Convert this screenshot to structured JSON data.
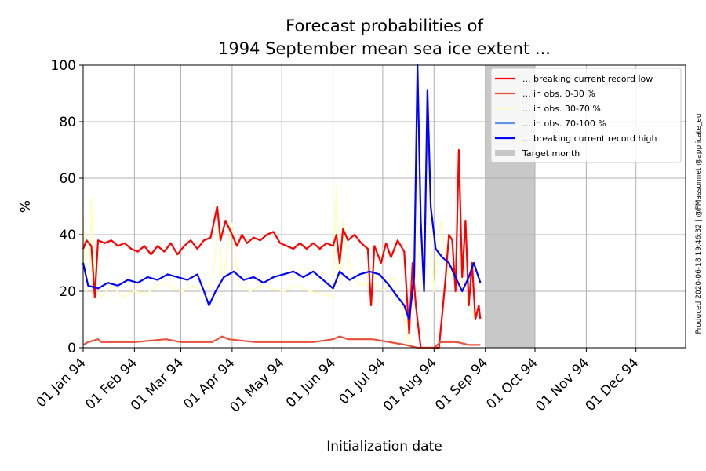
{
  "chart_data": {
    "type": "line",
    "title": "Forecast probabilities of",
    "subtitle": "1994 September mean sea ice extent ...",
    "xlabel": "Initialization date",
    "ylabel": "%",
    "ylim": [
      0,
      100
    ],
    "yticks": [
      "0",
      "20",
      "40",
      "60",
      "80",
      "100"
    ],
    "xlim": [
      "1994-01-01",
      "1994-12-31"
    ],
    "xticks": [
      {
        "date": "1994-01-01",
        "label": "01 Jan 94"
      },
      {
        "date": "1994-02-01",
        "label": "01 Feb 94"
      },
      {
        "date": "1994-03-01",
        "label": "01 Mar 94"
      },
      {
        "date": "1994-04-01",
        "label": "01 Apr 94"
      },
      {
        "date": "1994-05-01",
        "label": "01 May 94"
      },
      {
        "date": "1994-06-01",
        "label": "01 Jun 94"
      },
      {
        "date": "1994-07-01",
        "label": "01 Jul 94"
      },
      {
        "date": "1994-08-01",
        "label": "01 Aug 94"
      },
      {
        "date": "1994-09-01",
        "label": "01 Sep 94"
      },
      {
        "date": "1994-10-01",
        "label": "01 Oct 94"
      },
      {
        "date": "1994-11-01",
        "label": "01 Nov 94"
      },
      {
        "date": "1994-12-01",
        "label": "01 Dec 94"
      }
    ],
    "grid": true,
    "legend_position": "top-right",
    "target_month": {
      "name": "Target month",
      "start": "1994-09-01",
      "end": "1994-10-01",
      "color": "#c8c8c8"
    },
    "series": [
      {
        "name": "... breaking current record low",
        "color": "#ff0000",
        "points": [
          [
            "1994-01-01",
            35
          ],
          [
            "1994-01-03",
            38
          ],
          [
            "1994-01-06",
            36
          ],
          [
            "1994-01-08",
            18
          ],
          [
            "1994-01-10",
            38
          ],
          [
            "1994-01-14",
            37
          ],
          [
            "1994-01-18",
            38
          ],
          [
            "1994-01-22",
            36
          ],
          [
            "1994-01-26",
            37
          ],
          [
            "1994-01-30",
            35
          ],
          [
            "1994-02-03",
            34
          ],
          [
            "1994-02-07",
            36
          ],
          [
            "1994-02-11",
            33
          ],
          [
            "1994-02-15",
            36
          ],
          [
            "1994-02-19",
            34
          ],
          [
            "1994-02-23",
            37
          ],
          [
            "1994-02-27",
            33
          ],
          [
            "1994-03-03",
            36
          ],
          [
            "1994-03-07",
            38
          ],
          [
            "1994-03-11",
            35
          ],
          [
            "1994-03-15",
            38
          ],
          [
            "1994-03-19",
            39
          ],
          [
            "1994-03-23",
            50
          ],
          [
            "1994-03-25",
            38
          ],
          [
            "1994-03-28",
            45
          ],
          [
            "1994-04-01",
            40
          ],
          [
            "1994-04-04",
            36
          ],
          [
            "1994-04-07",
            40
          ],
          [
            "1994-04-10",
            37
          ],
          [
            "1994-04-14",
            39
          ],
          [
            "1994-04-18",
            38
          ],
          [
            "1994-04-22",
            40
          ],
          [
            "1994-04-26",
            41
          ],
          [
            "1994-04-30",
            37
          ],
          [
            "1994-05-04",
            36
          ],
          [
            "1994-05-08",
            35
          ],
          [
            "1994-05-12",
            37
          ],
          [
            "1994-05-16",
            35
          ],
          [
            "1994-05-20",
            37
          ],
          [
            "1994-05-24",
            35
          ],
          [
            "1994-05-28",
            37
          ],
          [
            "1994-06-01",
            36
          ],
          [
            "1994-06-03",
            40
          ],
          [
            "1994-06-05",
            30
          ],
          [
            "1994-06-07",
            42
          ],
          [
            "1994-06-10",
            38
          ],
          [
            "1994-06-14",
            40
          ],
          [
            "1994-06-18",
            37
          ],
          [
            "1994-06-22",
            35
          ],
          [
            "1994-06-24",
            15
          ],
          [
            "1994-06-26",
            36
          ],
          [
            "1994-06-30",
            30
          ],
          [
            "1994-07-03",
            37
          ],
          [
            "1994-07-06",
            32
          ],
          [
            "1994-07-10",
            38
          ],
          [
            "1994-07-14",
            34
          ],
          [
            "1994-07-17",
            5
          ],
          [
            "1994-07-19",
            30
          ],
          [
            "1994-07-21",
            15
          ],
          [
            "1994-07-24",
            0
          ],
          [
            "1994-07-27",
            0
          ],
          [
            "1994-07-30",
            0
          ],
          [
            "1994-08-02",
            0
          ],
          [
            "1994-08-04",
            0
          ],
          [
            "1994-08-06",
            12
          ],
          [
            "1994-08-08",
            25
          ],
          [
            "1994-08-10",
            40
          ],
          [
            "1994-08-12",
            38
          ],
          [
            "1994-08-14",
            20
          ],
          [
            "1994-08-16",
            70
          ],
          [
            "1994-08-18",
            25
          ],
          [
            "1994-08-20",
            45
          ],
          [
            "1994-08-22",
            15
          ],
          [
            "1994-08-24",
            30
          ],
          [
            "1994-08-26",
            10
          ],
          [
            "1994-08-28",
            15
          ],
          [
            "1994-08-29",
            10
          ]
        ]
      },
      {
        "name": "... in obs. 0-30 %",
        "color": "#e8503a",
        "points": [
          [
            "1994-01-01",
            1
          ],
          [
            "1994-01-04",
            2
          ],
          [
            "1994-01-10",
            3
          ],
          [
            "1994-01-12",
            2
          ],
          [
            "1994-02-01",
            2
          ],
          [
            "1994-02-20",
            3
          ],
          [
            "1994-03-01",
            2
          ],
          [
            "1994-03-20",
            2
          ],
          [
            "1994-03-26",
            4
          ],
          [
            "1994-03-30",
            3
          ],
          [
            "1994-04-15",
            2
          ],
          [
            "1994-05-01",
            2
          ],
          [
            "1994-05-20",
            2
          ],
          [
            "1994-06-01",
            3
          ],
          [
            "1994-06-05",
            4
          ],
          [
            "1994-06-10",
            3
          ],
          [
            "1994-06-25",
            3
          ],
          [
            "1994-07-05",
            2
          ],
          [
            "1994-07-15",
            1
          ],
          [
            "1994-07-22",
            0
          ],
          [
            "1994-08-01",
            0
          ],
          [
            "1994-08-05",
            2
          ],
          [
            "1994-08-15",
            2
          ],
          [
            "1994-08-22",
            1
          ],
          [
            "1994-08-29",
            1
          ]
        ]
      },
      {
        "name": "... in obs. 30-70 %",
        "color": "#ffffc0",
        "points": [
          [
            "1994-01-01",
            45
          ],
          [
            "1994-01-03",
            20
          ],
          [
            "1994-01-05",
            25
          ],
          [
            "1994-01-06",
            53
          ],
          [
            "1994-01-08",
            20
          ],
          [
            "1994-01-12",
            18
          ],
          [
            "1994-01-18",
            22
          ],
          [
            "1994-01-25",
            18
          ],
          [
            "1994-02-01",
            20
          ],
          [
            "1994-02-08",
            19
          ],
          [
            "1994-02-15",
            22
          ],
          [
            "1994-02-20",
            23
          ],
          [
            "1994-02-25",
            21
          ],
          [
            "1994-03-02",
            20
          ],
          [
            "1994-03-08",
            22
          ],
          [
            "1994-03-14",
            20
          ],
          [
            "1994-03-20",
            23
          ],
          [
            "1994-03-24",
            45
          ],
          [
            "1994-03-26",
            22
          ],
          [
            "1994-04-01",
            44
          ],
          [
            "1994-04-05",
            22
          ],
          [
            "1994-04-12",
            20
          ],
          [
            "1994-04-18",
            22
          ],
          [
            "1994-04-25",
            21
          ],
          [
            "1994-05-02",
            20
          ],
          [
            "1994-05-10",
            22
          ],
          [
            "1994-05-18",
            20
          ],
          [
            "1994-05-25",
            19
          ],
          [
            "1994-06-01",
            18
          ],
          [
            "1994-06-03",
            58
          ],
          [
            "1994-06-05",
            22
          ],
          [
            "1994-06-07",
            45
          ],
          [
            "1994-06-12",
            25
          ],
          [
            "1994-06-18",
            22
          ],
          [
            "1994-06-25",
            23
          ],
          [
            "1994-07-02",
            20
          ],
          [
            "1994-07-08",
            25
          ],
          [
            "1994-07-14",
            10
          ],
          [
            "1994-07-17",
            0
          ],
          [
            "1994-07-21",
            58
          ],
          [
            "1994-07-24",
            20
          ],
          [
            "1994-07-28",
            53
          ],
          [
            "1994-08-01",
            20
          ],
          [
            "1994-08-05",
            45
          ],
          [
            "1994-08-10",
            25
          ],
          [
            "1994-08-14",
            25
          ],
          [
            "1994-08-16",
            70
          ],
          [
            "1994-08-18",
            20
          ],
          [
            "1994-08-22",
            15
          ],
          [
            "1994-08-25",
            12
          ],
          [
            "1994-08-29",
            11
          ]
        ]
      },
      {
        "name": "... in obs. 70-100 %",
        "color": "#6495ed",
        "points": []
      },
      {
        "name": "... breaking current record high",
        "color": "#0000ff",
        "points": [
          [
            "1994-01-01",
            30
          ],
          [
            "1994-01-04",
            22
          ],
          [
            "1994-01-10",
            21
          ],
          [
            "1994-01-16",
            23
          ],
          [
            "1994-01-22",
            22
          ],
          [
            "1994-01-28",
            24
          ],
          [
            "1994-02-03",
            23
          ],
          [
            "1994-02-09",
            25
          ],
          [
            "1994-02-15",
            24
          ],
          [
            "1994-02-21",
            26
          ],
          [
            "1994-02-27",
            25
          ],
          [
            "1994-03-05",
            24
          ],
          [
            "1994-03-11",
            26
          ],
          [
            "1994-03-15",
            20
          ],
          [
            "1994-03-18",
            15
          ],
          [
            "1994-03-22",
            20
          ],
          [
            "1994-03-27",
            25
          ],
          [
            "1994-04-02",
            27
          ],
          [
            "1994-04-08",
            24
          ],
          [
            "1994-04-14",
            25
          ],
          [
            "1994-04-20",
            23
          ],
          [
            "1994-04-26",
            25
          ],
          [
            "1994-05-02",
            26
          ],
          [
            "1994-05-08",
            27
          ],
          [
            "1994-05-14",
            25
          ],
          [
            "1994-05-20",
            27
          ],
          [
            "1994-05-26",
            24
          ],
          [
            "1994-06-01",
            21
          ],
          [
            "1994-06-05",
            27
          ],
          [
            "1994-06-11",
            24
          ],
          [
            "1994-06-17",
            26
          ],
          [
            "1994-06-23",
            27
          ],
          [
            "1994-06-29",
            26
          ],
          [
            "1994-07-05",
            22
          ],
          [
            "1994-07-10",
            18
          ],
          [
            "1994-07-14",
            15
          ],
          [
            "1994-07-17",
            10
          ],
          [
            "1994-07-20",
            25
          ],
          [
            "1994-07-22",
            100
          ],
          [
            "1994-07-24",
            45
          ],
          [
            "1994-07-26",
            20
          ],
          [
            "1994-07-28",
            91
          ],
          [
            "1994-07-30",
            50
          ],
          [
            "1994-08-02",
            35
          ],
          [
            "1994-08-06",
            32
          ],
          [
            "1994-08-10",
            30
          ],
          [
            "1994-08-14",
            25
          ],
          [
            "1994-08-18",
            20
          ],
          [
            "1994-08-22",
            25
          ],
          [
            "1994-08-25",
            30
          ],
          [
            "1994-08-29",
            23
          ]
        ]
      }
    ]
  },
  "credit": "Produced 2020-06-18 19:46:32 | @FMassonnet @applicate_eu"
}
